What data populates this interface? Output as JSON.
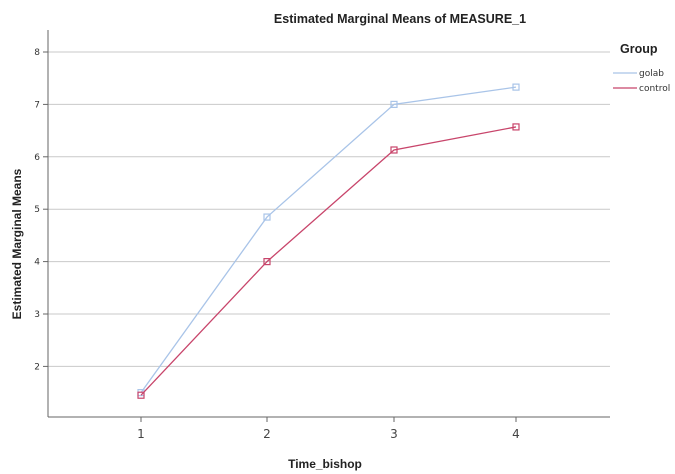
{
  "chart_data": {
    "type": "line",
    "title": "Estimated Marginal Means of MEASURE_1",
    "xlabel": "Time_bishop",
    "ylabel": "Estimated Marginal Means",
    "categories": [
      "1",
      "2",
      "3",
      "4"
    ],
    "ylim": [
      1,
      8
    ],
    "yticks": [
      2,
      3,
      4,
      5,
      6,
      7,
      8
    ],
    "grid": "horizontal",
    "legend": {
      "title": "Group",
      "position": "top-right"
    },
    "series": [
      {
        "name": "golab",
        "color": "#a9c4e8",
        "values": [
          1.5,
          4.85,
          7.0,
          7.33
        ]
      },
      {
        "name": "control",
        "color": "#c8456b",
        "values": [
          1.45,
          4.0,
          6.13,
          6.57
        ]
      }
    ]
  }
}
